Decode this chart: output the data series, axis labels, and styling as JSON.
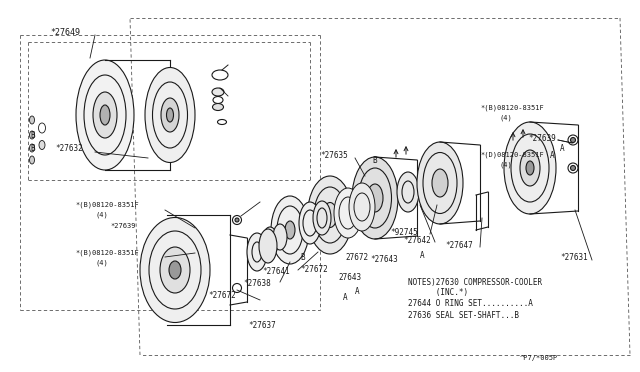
{
  "bg_color": "#FFFFFF",
  "line_color": "#1a1a1a",
  "text_color": "#1a1a1a",
  "fig_width": 6.4,
  "fig_height": 3.72,
  "dpi": 100,
  "notes_lines": [
    "NOTES)27630 COMPRESSOR-COOLER",
    "      (INC.*)",
    "27644 O RING SET..........A",
    "27636 SEAL SET-SHAFT...B"
  ],
  "footer": "^P7/*005P"
}
